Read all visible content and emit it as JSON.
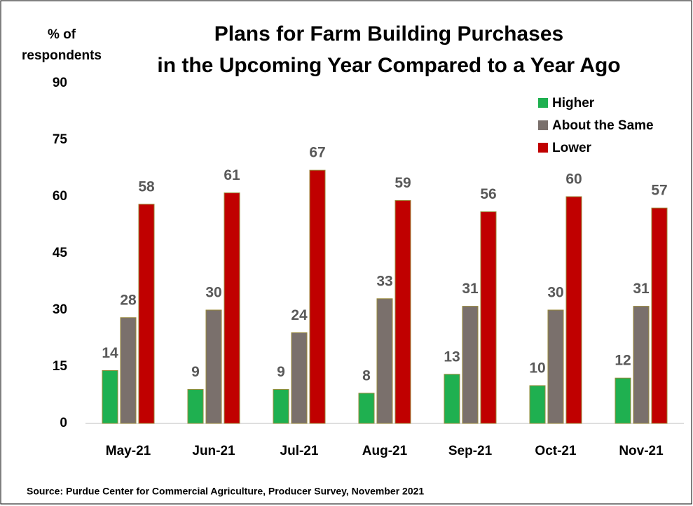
{
  "chart_data": {
    "type": "bar",
    "title": [
      "Plans for Farm Building Purchases",
      "in the Upcoming Year Compared to a Year Ago"
    ],
    "ylabel": [
      "% of",
      "respondents"
    ],
    "categories": [
      "May-21",
      "Jun-21",
      "Jul-21",
      "Aug-21",
      "Sep-21",
      "Oct-21",
      "Nov-21"
    ],
    "series": [
      {
        "name": "Higher",
        "color": "#1fb050",
        "values": [
          14,
          9,
          9,
          8,
          13,
          10,
          12
        ]
      },
      {
        "name": "About the Same",
        "color": "#7a706c",
        "values": [
          28,
          30,
          24,
          33,
          31,
          30,
          31
        ]
      },
      {
        "name": "Lower",
        "color": "#c00000",
        "values": [
          58,
          61,
          67,
          59,
          56,
          60,
          57
        ]
      }
    ],
    "ylim": [
      0,
      90
    ],
    "yticks": [
      0,
      15,
      30,
      45,
      60,
      75,
      90
    ],
    "legend": "upper right",
    "source": "Source: Purdue Center for Commercial Agriculture, Producer Survey, November 2021"
  }
}
